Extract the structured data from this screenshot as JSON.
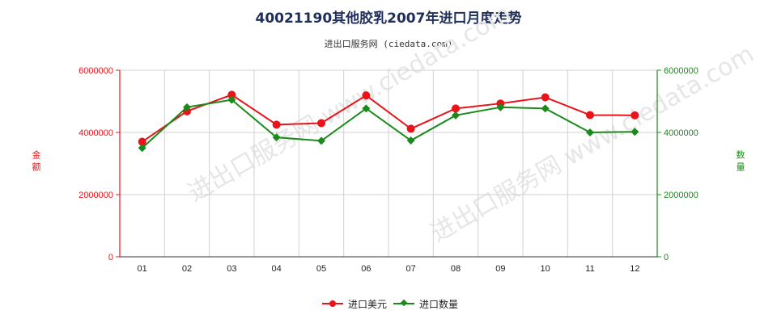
{
  "title": "40021190其他胶乳2007年进口月度走势",
  "subtitle": "进出口服务网 (ciedata.com)",
  "watermark": "进出口服务网 www.ciedata.com",
  "colors": {
    "amount": "#e8141a",
    "quantity": "#1a8a1a",
    "title": "#1f2f5a"
  },
  "chart_data": {
    "type": "line",
    "categories": [
      "01",
      "02",
      "03",
      "04",
      "05",
      "06",
      "07",
      "08",
      "09",
      "10",
      "11",
      "12"
    ],
    "series": [
      {
        "name": "进口美元",
        "axis": "left",
        "values": [
          3700000,
          4680000,
          5210000,
          4250000,
          4300000,
          5190000,
          4120000,
          4770000,
          4930000,
          5130000,
          4560000,
          4550000
        ]
      },
      {
        "name": "进口数量",
        "axis": "right",
        "values": [
          3500000,
          4810000,
          5050000,
          3840000,
          3730000,
          4770000,
          3740000,
          4550000,
          4810000,
          4770000,
          4000000,
          4020000
        ]
      }
    ],
    "ylabel_left": "金额",
    "ylabel_right": "数量",
    "ylim": [
      0,
      6000000
    ],
    "yticks": [
      "0",
      "2000000",
      "4000000",
      "6000000"
    ],
    "grid": true,
    "legend": "bottom-center"
  }
}
